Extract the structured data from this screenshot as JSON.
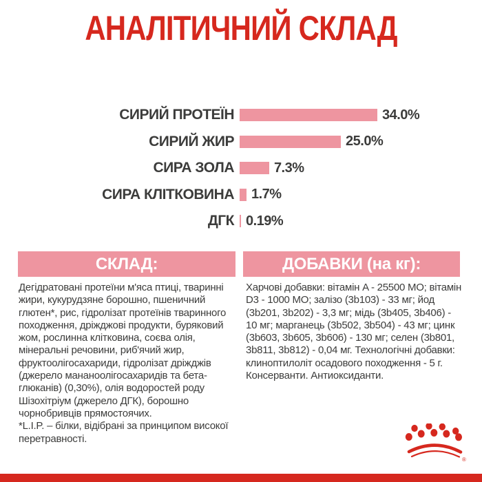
{
  "page": {
    "background": "#FFFFFF",
    "accent_red": "#D6281E",
    "pink": "#EE95A0",
    "text_dark": "#3C3C3B"
  },
  "title": "АНАЛІТИЧНИЙ СКЛАД",
  "chart_data": {
    "type": "bar",
    "orientation": "horizontal",
    "title": "АНАЛІТИЧНИЙ СКЛАД",
    "xlabel": "",
    "ylabel": "",
    "xlim": [
      0,
      34
    ],
    "grid": false,
    "legend": "none",
    "categories": [
      "СИРИЙ ПРОТЕЇН",
      "СИРИЙ ЖИР",
      "СИРА ЗОЛА",
      "СИРА КЛІТКОВИНА",
      "ДГК"
    ],
    "values": [
      34.0,
      25.0,
      7.3,
      1.7,
      0.19
    ],
    "value_labels": [
      "34.0%",
      "25.0%",
      "7.3%",
      "1.7%",
      "0.19%"
    ],
    "bar_color": "#EE95A0",
    "label_color": "#3C3C3B"
  },
  "composition": {
    "header": "СКЛАД:",
    "body": "Дегідратовані протеїни м'яса птиці, тваринні жири, кукурудзяне борошно, пшеничний глютен*, рис, гідролізат протеїнів тваринного походження, дріжджові продукти, буряковий жом, рослинна клітковина, соєва олія, мінеральні речовини, риб'ячий жир, фруктоолігосахариди, гідролізат дріжджів (джерело мананоолігосахаридів та бета-глюканів) (0,30%), олія водоростей роду Шізохітріум (джерело ДГК), борошно чорнобривців прямостоячих.",
    "footnote": "*L.I.P. – білки, відібрані за принципом високої перетравності."
  },
  "additives": {
    "header": "ДОБАВКИ (на кг):",
    "body": "Харчові добавки: вітамін A - 25500 МО; вітамін D3 - 1000 МО; залізо (3b103) - 33 мг; йод (3b201, 3b202) - 3,3 мг; мідь (3b405, 3b406) - 10 мг; марганець (3b502, 3b504) - 43 мг; цинк (3b603, 3b605, 3b606) - 130 мг; селен (3b801, 3b811, 3b812) - 0,04 мг. Технологічні добавки: клиноптилоліт осадового походження - 5 г. Консерванти. Антиоксиданти."
  },
  "logo": {
    "name": "royal-canin-crown",
    "registered_mark": "®",
    "color": "#D6281E"
  }
}
